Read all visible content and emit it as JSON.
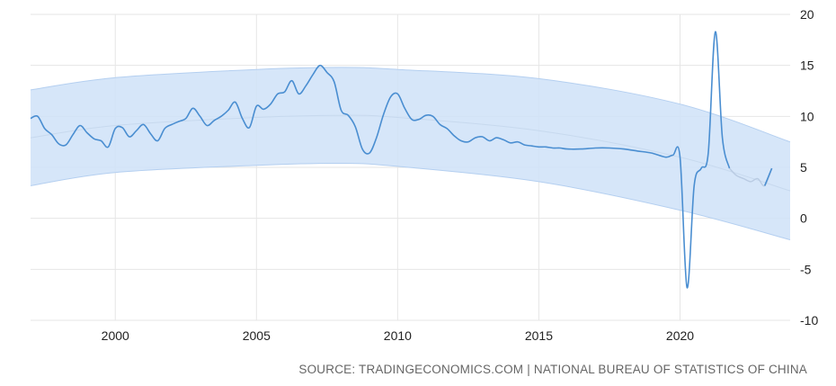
{
  "colors": {
    "line": "#4a8ed1",
    "band": "#cfe2f8",
    "grid": "#e6e6e6",
    "forecast": "#b9cbe3",
    "trend": "#c7d9ee"
  },
  "source_text": "SOURCE: TRADINGECONOMICS.COM | NATIONAL BUREAU OF STATISTICS OF CHINA",
  "chart_data": {
    "type": "line",
    "title": "",
    "xlabel": "",
    "ylabel": "",
    "xlim": [
      1997.0,
      2023.9
    ],
    "ylim": [
      -10,
      20
    ],
    "xticks": [
      2000,
      2005,
      2010,
      2015,
      2020
    ],
    "xtick_labels": [
      "2000",
      "2005",
      "2010",
      "2015",
      "2020"
    ],
    "yticks": [
      20,
      15,
      10,
      5,
      0,
      -5,
      -10
    ],
    "ytick_labels": [
      "20",
      "15",
      "10",
      "5",
      "0",
      "-5",
      "-10"
    ],
    "grid": true,
    "legend": "none",
    "series": [
      {
        "values_x": [
          1997.0,
          1997.25,
          1997.5,
          1997.75,
          1998.0,
          1998.25,
          1998.5,
          1998.75,
          1999.0,
          1999.25,
          1999.5,
          1999.75,
          2000.0,
          2000.25,
          2000.5,
          2000.75,
          2001.0,
          2001.25,
          2001.5,
          2001.75,
          2002.0,
          2002.25,
          2002.5,
          2002.75,
          2003.0,
          2003.25,
          2003.5,
          2003.75,
          2004.0,
          2004.25,
          2004.5,
          2004.75,
          2005.0,
          2005.25,
          2005.5,
          2005.75,
          2006.0,
          2006.25,
          2006.5,
          2006.75,
          2007.0,
          2007.25,
          2007.5,
          2007.75,
          2008.0,
          2008.25,
          2008.5,
          2008.75,
          2009.0,
          2009.25,
          2009.5,
          2009.75,
          2010.0,
          2010.25,
          2010.5,
          2010.75,
          2011.0,
          2011.25,
          2011.5,
          2011.75,
          2012.0,
          2012.25,
          2012.5,
          2012.75,
          2013.0,
          2013.25,
          2013.5,
          2013.75,
          2014.0,
          2014.25,
          2014.5,
          2014.75,
          2015.0,
          2015.25,
          2015.5,
          2015.75,
          2016.0,
          2016.5,
          2017.0,
          2017.5,
          2018.0,
          2018.5,
          2019.0,
          2019.5,
          2019.75,
          2020.0,
          2020.25,
          2020.5,
          2020.75,
          2021.0,
          2021.25,
          2021.5,
          2021.75
        ],
        "values": [
          9.8,
          10.0,
          8.8,
          8.2,
          7.3,
          7.2,
          8.2,
          9.1,
          8.4,
          7.8,
          7.6,
          7.0,
          8.8,
          8.9,
          8.0,
          8.6,
          9.2,
          8.3,
          7.6,
          8.8,
          9.2,
          9.5,
          9.8,
          10.8,
          10.0,
          9.1,
          9.6,
          10.0,
          10.6,
          11.4,
          9.8,
          8.9,
          11.0,
          10.7,
          11.2,
          12.2,
          12.4,
          13.5,
          12.2,
          13.0,
          14.1,
          15.0,
          14.3,
          13.4,
          10.6,
          10.1,
          9.0,
          6.8,
          6.4,
          7.9,
          10.2,
          11.9,
          12.2,
          10.8,
          9.7,
          9.7,
          10.1,
          10.0,
          9.2,
          8.8,
          8.1,
          7.6,
          7.5,
          7.9,
          8.0,
          7.6,
          7.9,
          7.7,
          7.4,
          7.5,
          7.2,
          7.1,
          7.0,
          7.0,
          6.9,
          6.9,
          6.8,
          6.8,
          6.9,
          6.9,
          6.8,
          6.6,
          6.4,
          6.0,
          6.2,
          6.0,
          -6.8,
          3.2,
          4.9,
          6.4,
          18.3,
          7.9,
          4.9
        ]
      },
      {
        "name_hidden": "forecast",
        "values_x": [
          2021.75,
          2022.0,
          2022.25,
          2022.5,
          2022.75,
          2023.0,
          2023.25
        ],
        "values": [
          4.9,
          4.2,
          3.9,
          3.6,
          3.9,
          3.2,
          4.9
        ]
      }
    ],
    "band": {
      "x": [
        1997.0,
        2000,
        2005,
        2008,
        2010,
        2015,
        2020,
        2023.9
      ],
      "upper": [
        12.6,
        13.8,
        14.6,
        14.8,
        14.6,
        13.7,
        11.2,
        7.5
      ],
      "lower": [
        3.2,
        4.5,
        5.2,
        5.4,
        5.1,
        3.6,
        0.8,
        -2.1
      ]
    },
    "trend": {
      "x": [
        1997.0,
        2000,
        2005,
        2008,
        2010,
        2015,
        2020,
        2023.9
      ],
      "y": [
        7.9,
        9.1,
        9.9,
        10.1,
        9.9,
        8.6,
        6.0,
        2.7
      ]
    }
  }
}
